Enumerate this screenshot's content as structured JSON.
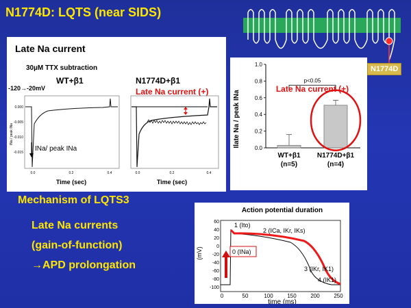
{
  "slide": {
    "title": "N1774D: LQTS (near SIDS)",
    "channel_label": "N1774D"
  },
  "late_panel": {
    "heading": "Late Na current",
    "ttx_note": "30µM TTX subtraction",
    "protocol": "-120→-20mV",
    "wt_label": "WT+β1",
    "mut_label": "N1774D+β1",
    "mut_annot": "Late Na current (+)",
    "ina_arrow_label": "INa/ peak INa",
    "xlabel": "Time (sec)",
    "y_axis_small": "INa / peak INa",
    "ytick_0": "0.000",
    "ytick_1": "-0.005",
    "ytick_2": "-0.010",
    "ytick_3": "-0.015",
    "xtick_0": "0.0",
    "xtick_1": "0.2",
    "xtick_2": "0.4"
  },
  "bar_panel": {
    "annot": "Late Na current (+)",
    "pval": "p<0.05",
    "ylabel": "Ilate Na / peak INa",
    "ticks": [
      "1.0",
      "0.8",
      "0.6",
      "0.4",
      "0.2",
      "0.0"
    ],
    "cat1": "WT+β1",
    "cat1_n": "(n=5)",
    "cat2": "N1774D+β1",
    "cat2_n": "(n=4)"
  },
  "chart_data": {
    "type": "bar",
    "categories": [
      "WT+β1",
      "N1774D+β1"
    ],
    "values": [
      0.03,
      0.51
    ],
    "errors": [
      0.13,
      0.06
    ],
    "ylabel": "Ilate Na / peak INa",
    "ylim": [
      0,
      1.0
    ]
  },
  "mechanism": {
    "heading": "Mechanism of LQTS3",
    "line1": "Late Na currents",
    "line2": "(gain-of-function)",
    "line3": "→APD prolongation"
  },
  "ap_panel": {
    "title": "Action potential duration",
    "ylabel": "(mV)",
    "xlabel": "time (ms)",
    "yticks": [
      "60",
      "40",
      "20",
      "0",
      "-20",
      "-40",
      "-60",
      "-80",
      "-100"
    ],
    "xticks": [
      "0",
      "50",
      "100",
      "150",
      "200",
      "250"
    ],
    "phase0": "0 (INa)",
    "phase1": "1 (Ito)",
    "phase2": "2 (ICa, IKr, IKs)",
    "phase3": "3 (IKr, IK1)",
    "phase4": "4 (IK1)"
  }
}
